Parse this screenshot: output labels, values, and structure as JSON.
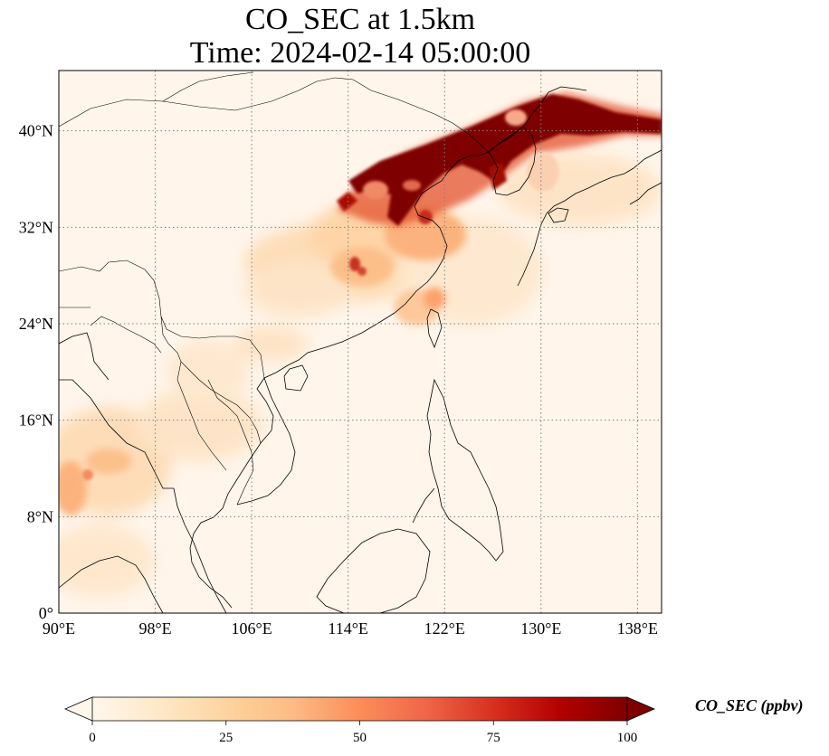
{
  "title": {
    "line1": "CO_SEC at 1.5km",
    "line2": "Time: 2024-02-14 05:00:00"
  },
  "map": {
    "projection": "PlateCarree",
    "extent": {
      "lon_min": 90,
      "lon_max": 140,
      "lat_min": 0,
      "lat_max": 45
    },
    "gridlines": "dotted grey",
    "lon_ticks": [
      {
        "value": 90,
        "label": "90°E"
      },
      {
        "value": 98,
        "label": "98°E"
      },
      {
        "value": 106,
        "label": "106°E"
      },
      {
        "value": 114,
        "label": "114°E"
      },
      {
        "value": 122,
        "label": "122°E"
      },
      {
        "value": 130,
        "label": "130°E"
      },
      {
        "value": 138,
        "label": "138°E"
      }
    ],
    "lat_ticks": [
      {
        "value": 0,
        "label": "0°"
      },
      {
        "value": 8,
        "label": "8°N"
      },
      {
        "value": 16,
        "label": "16°N"
      },
      {
        "value": 24,
        "label": "24°N"
      },
      {
        "value": 32,
        "label": "32°N"
      },
      {
        "value": 40,
        "label": "40°N"
      }
    ],
    "background_color": "#fff5eb",
    "features": [
      "coastlines",
      "country borders"
    ]
  },
  "colorbar": {
    "label": "CO_SEC (ppbv)",
    "ticks": [
      "0",
      "25",
      "50",
      "75",
      "100"
    ],
    "range": [
      0,
      100
    ],
    "extend": "both",
    "colormap": "OrRd",
    "colors": [
      "#fff7ec",
      "#fee8c8",
      "#fdd49e",
      "#fdbb84",
      "#fc8d59",
      "#ef6548",
      "#d7301f",
      "#b30000",
      "#7f0000"
    ]
  }
}
